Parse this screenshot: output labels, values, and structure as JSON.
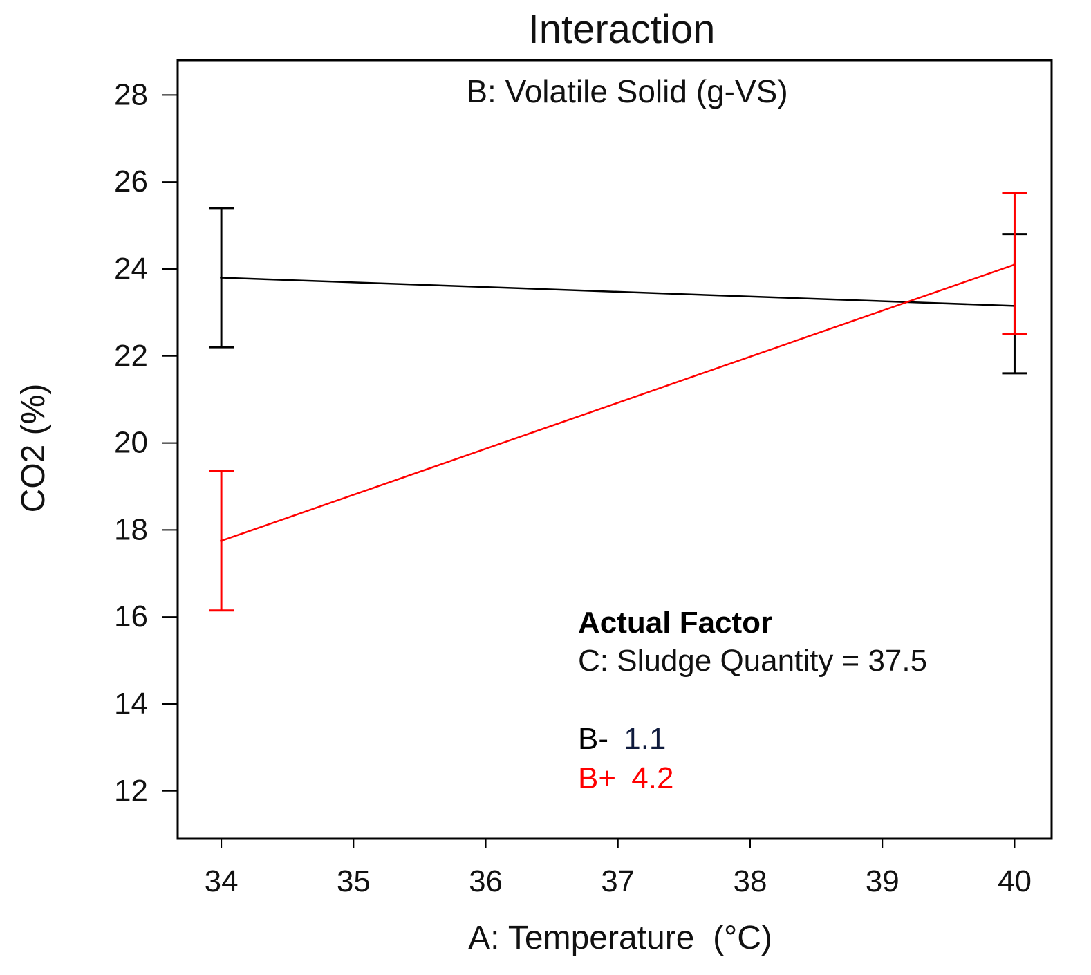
{
  "chart_data": {
    "type": "line",
    "title": "Interaction",
    "subtitle": "B: Volatile Solid (g-VS)",
    "xlabel": "A: Temperature  (°C)",
    "ylabel": "CO2 (%)",
    "xlim": [
      33.67,
      40.28
    ],
    "ylim": [
      10.9,
      28.8
    ],
    "x_ticks": [
      34,
      35,
      36,
      37,
      38,
      39,
      40
    ],
    "y_ticks": [
      12,
      14,
      16,
      18,
      20,
      22,
      24,
      26,
      28
    ],
    "grid": false,
    "series": [
      {
        "name": "B-",
        "level": "1.1",
        "color": "#000000",
        "x": [
          34,
          40
        ],
        "y": [
          23.8,
          23.15
        ],
        "error_low": [
          22.2,
          21.6
        ],
        "error_high": [
          25.4,
          24.8
        ]
      },
      {
        "name": "B+",
        "level": "4.2",
        "color": "#ff0000",
        "x": [
          34,
          40
        ],
        "y": [
          17.75,
          24.1
        ],
        "error_low": [
          16.15,
          22.5
        ],
        "error_high": [
          19.35,
          25.75
        ]
      }
    ],
    "annotation": {
      "heading": "Actual Factor",
      "text": "C: Sludge Quantity = 37.5"
    },
    "legend": {
      "placement": "lower-right",
      "entries": [
        {
          "label": "B-",
          "value": "1.1",
          "color": "#000000"
        },
        {
          "label": "B+",
          "value": "4.2",
          "color": "#ff0000"
        }
      ]
    }
  }
}
